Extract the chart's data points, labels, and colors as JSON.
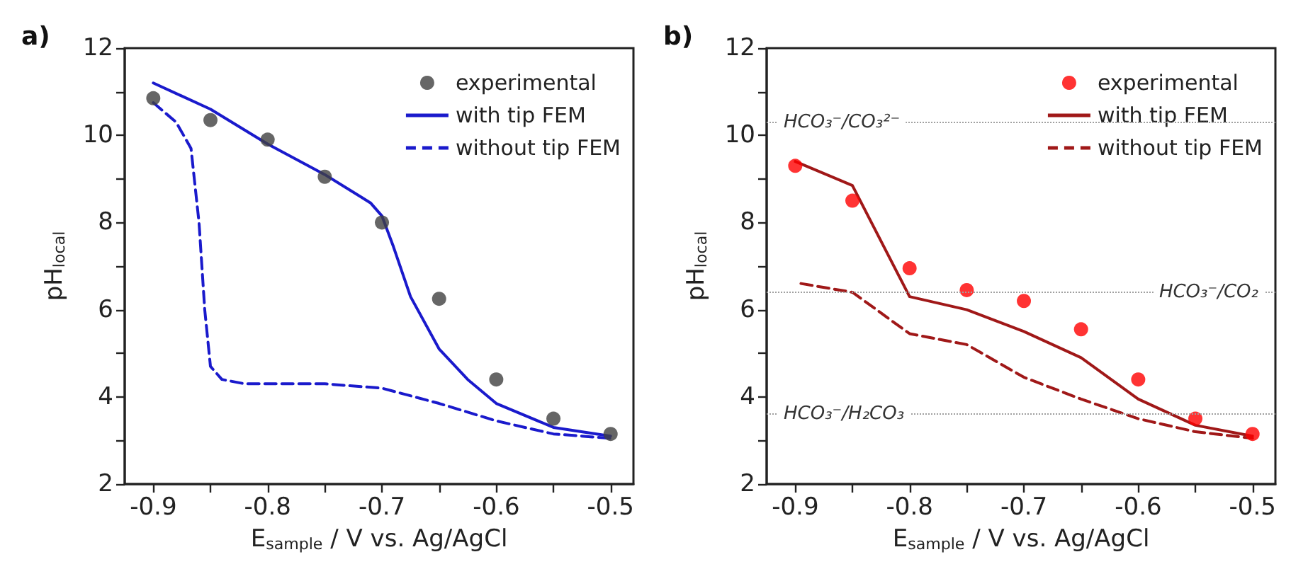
{
  "chart_data": [
    {
      "type": "line",
      "title": "a)",
      "xlabel": "E$_{sample}$ / V vs. Ag/AgCl",
      "ylabel": "pH$_{local}$",
      "xlim": [
        -0.925,
        -0.48
      ],
      "ylim": [
        2,
        12
      ],
      "xticks": [
        -0.9,
        {
          "value": -0.85,
          "label": null
        },
        -0.8,
        {
          "value": -0.75,
          "label": null
        },
        -0.7,
        {
          "value": -0.65,
          "label": null
        },
        -0.6,
        {
          "value": -0.55,
          "label": null
        },
        -0.5
      ],
      "yticks": [
        2,
        {
          "value": 3,
          "label": null
        },
        4,
        {
          "value": 5,
          "label": null
        },
        6,
        {
          "value": 7,
          "label": null
        },
        8,
        {
          "value": 9,
          "label": null
        },
        10,
        {
          "value": 11,
          "label": null
        },
        12
      ],
      "grid": false,
      "legend": "top right",
      "series": [
        {
          "name": "experimental",
          "type": "scatter",
          "marker": "circle",
          "color": "#404040",
          "x": [
            -0.9,
            -0.85,
            -0.8,
            -0.75,
            -0.7,
            -0.65,
            -0.6,
            -0.55,
            -0.5
          ],
          "values": [
            10.85,
            10.35,
            9.9,
            9.05,
            8.0,
            6.25,
            4.4,
            3.5,
            3.15
          ]
        },
        {
          "name": "with tip FEM",
          "line_style": "solid",
          "color": "#1a1acc",
          "x": [
            -0.9,
            -0.85,
            -0.8,
            -0.75,
            -0.71,
            -0.7,
            -0.69,
            -0.675,
            -0.65,
            -0.625,
            -0.6,
            -0.55,
            -0.5
          ],
          "values": [
            11.2,
            10.6,
            9.8,
            9.1,
            8.45,
            8.15,
            7.45,
            6.3,
            5.1,
            4.4,
            3.85,
            3.3,
            3.1
          ]
        },
        {
          "name": "without tip FEM",
          "line_style": "dashed",
          "color": "#1a1acc",
          "x": [
            -0.9,
            -0.88,
            -0.867,
            -0.86,
            -0.855,
            -0.85,
            -0.84,
            -0.82,
            -0.75,
            -0.7,
            -0.65,
            -0.6,
            -0.55,
            -0.5
          ],
          "values": [
            10.75,
            10.3,
            9.7,
            8.0,
            6.0,
            4.7,
            4.4,
            4.3,
            4.3,
            4.2,
            3.85,
            3.45,
            3.15,
            3.05
          ]
        }
      ]
    },
    {
      "type": "line",
      "title": "b)",
      "xlabel": "E$_{sample}$ / V vs. Ag/AgCl",
      "ylabel": "pH$_{local}$",
      "xlim": [
        -0.925,
        -0.48
      ],
      "ylim": [
        2,
        12
      ],
      "xticks": [
        -0.9,
        {
          "value": -0.85,
          "label": null
        },
        -0.8,
        {
          "value": -0.75,
          "label": null
        },
        -0.7,
        {
          "value": -0.65,
          "label": null
        },
        -0.6,
        {
          "value": -0.55,
          "label": null
        },
        -0.5
      ],
      "yticks": [
        2,
        {
          "value": 3,
          "label": null
        },
        4,
        {
          "value": 5,
          "label": null
        },
        6,
        {
          "value": 7,
          "label": null
        },
        8,
        {
          "value": 9,
          "label": null
        },
        10,
        {
          "value": 11,
          "label": null
        },
        12
      ],
      "grid": false,
      "legend": "top right",
      "ref_lines": [
        {
          "axis": "y",
          "value": 10.3,
          "label": "HCO₃⁻/CO₃²⁻",
          "color": "#a0a0a0",
          "line_style": "dotted"
        },
        {
          "axis": "y",
          "value": 6.4,
          "label": "HCO₃⁻/CO₂",
          "color": "#a0a0a0",
          "line_style": "dotted"
        },
        {
          "axis": "y",
          "value": 3.6,
          "label": "HCO₃⁻/H₂CO₃",
          "color": "#a0a0a0",
          "line_style": "dotted"
        }
      ],
      "series": [
        {
          "name": "experimental",
          "type": "scatter",
          "marker": "circle",
          "color": "#ff0000",
          "x": [
            -0.9,
            -0.85,
            -0.8,
            -0.75,
            -0.7,
            -0.65,
            -0.6,
            -0.55,
            -0.5
          ],
          "values": [
            9.3,
            8.5,
            6.95,
            6.45,
            6.2,
            5.55,
            4.4,
            3.5,
            3.15
          ]
        },
        {
          "name": "with tip FEM",
          "line_style": "solid",
          "color": "#a01818",
          "x": [
            -0.9,
            -0.85,
            -0.8,
            -0.75,
            -0.7,
            -0.65,
            -0.6,
            -0.55,
            -0.5
          ],
          "values": [
            9.4,
            8.85,
            6.3,
            6.0,
            5.5,
            4.9,
            3.95,
            3.35,
            3.1
          ]
        },
        {
          "name": "without tip FEM",
          "line_style": "dashed",
          "color": "#a01818",
          "x": [
            -0.895,
            -0.85,
            -0.8,
            -0.75,
            -0.7,
            -0.65,
            -0.6,
            -0.55,
            -0.5
          ],
          "values": [
            6.6,
            6.4,
            5.45,
            5.2,
            4.45,
            3.95,
            3.5,
            3.2,
            3.05
          ]
        }
      ]
    }
  ]
}
